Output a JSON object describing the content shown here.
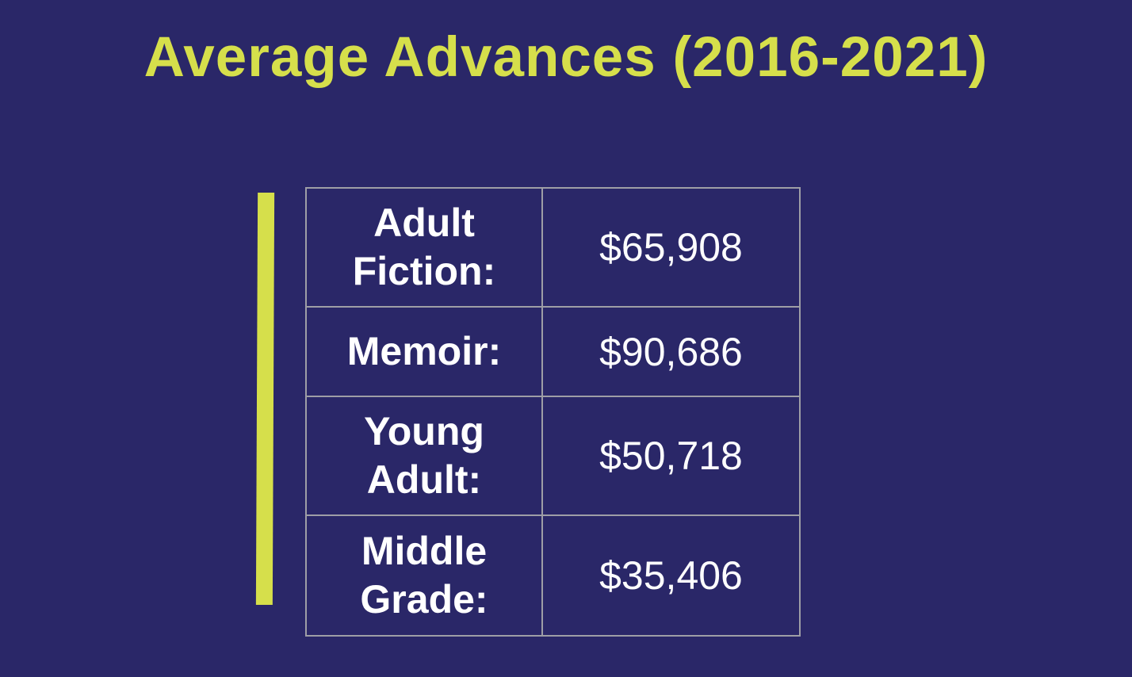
{
  "colors": {
    "background": "#2a2768",
    "accent": "#d6df4b",
    "border": "#9e9ea6",
    "text": "#ffffff"
  },
  "title": "Average Advances (2016-2021)",
  "chart_data": {
    "type": "table",
    "title": "Average Advances (2016-2021)",
    "categories": [
      "Adult Fiction",
      "Memoir",
      "Young Adult",
      "Middle Grade"
    ],
    "values": [
      65908,
      90686,
      50718,
      35406
    ],
    "rows": [
      {
        "label": "Adult Fiction:",
        "value": "$65,908"
      },
      {
        "label": "Memoir:",
        "value": "$90,686"
      },
      {
        "label": "Young Adult:",
        "value": "$50,718"
      },
      {
        "label": "Middle Grade:",
        "value": "$35,406"
      }
    ]
  }
}
